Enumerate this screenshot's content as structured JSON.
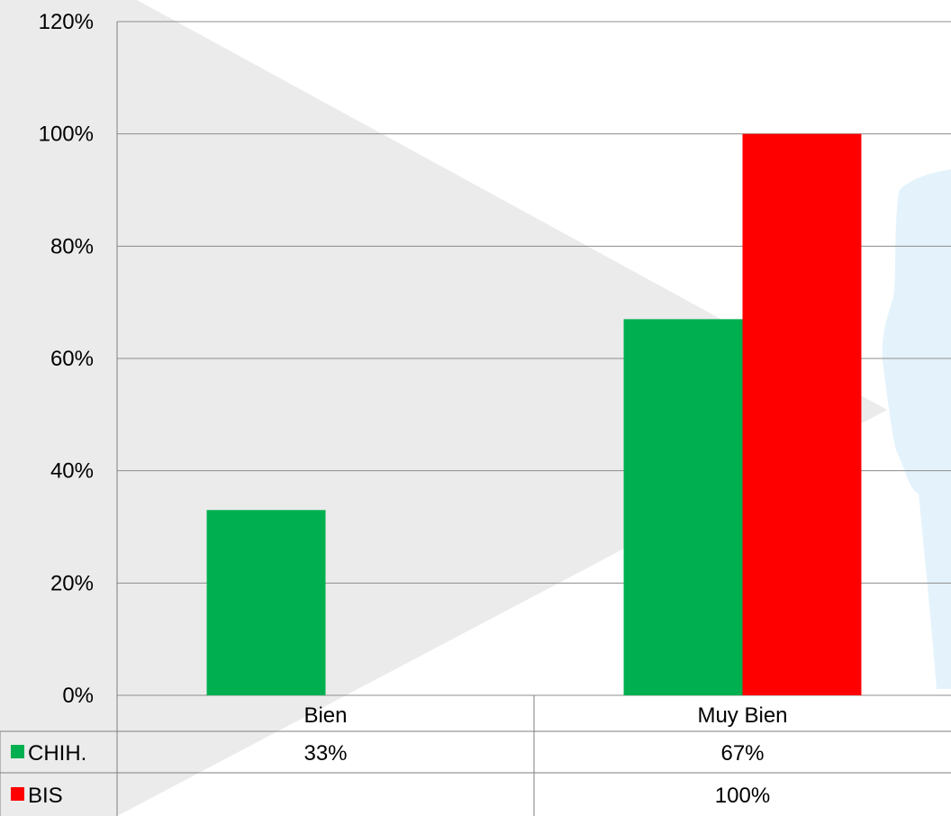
{
  "chart_data": {
    "type": "bar",
    "categories": [
      "Bien",
      "Muy Bien"
    ],
    "series": [
      {
        "name": "CHIH.",
        "values": [
          33,
          67
        ],
        "labels": [
          "33%",
          "67%"
        ],
        "color": "#00B050"
      },
      {
        "name": "BIS",
        "values": [
          null,
          100
        ],
        "labels": [
          "",
          "100%"
        ],
        "color": "#FF0000"
      }
    ],
    "ylim": [
      0,
      120
    ],
    "yticks": [
      "0%",
      "20%",
      "40%",
      "60%",
      "80%",
      "100%",
      "120%"
    ],
    "ytick_values": [
      0,
      20,
      40,
      60,
      80,
      100,
      120
    ],
    "grid": true,
    "legend": "data-table-left"
  }
}
